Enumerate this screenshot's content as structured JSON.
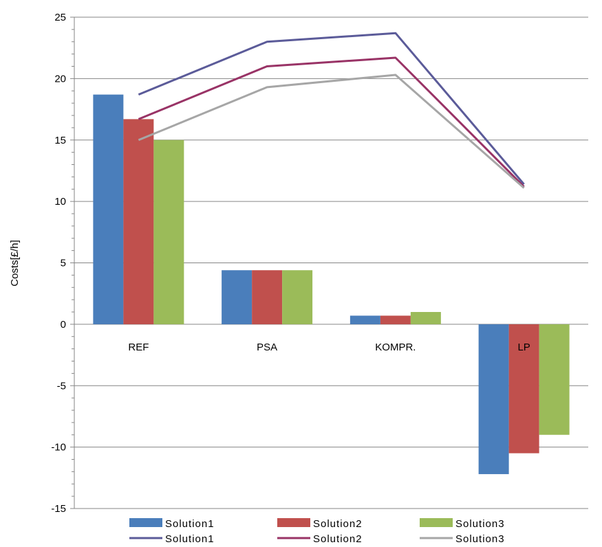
{
  "chart_data": {
    "type": "bar",
    "categories": [
      "REF",
      "PSA",
      "KOMPR.",
      "LP"
    ],
    "ylabel": "Costs[£/h]",
    "xlabel": "",
    "title": "",
    "ylim": [
      -15,
      25
    ],
    "yticks": [
      25,
      20,
      15,
      10,
      5,
      0,
      -5,
      -10,
      -15
    ],
    "grid": true,
    "legend_position": "bottom",
    "bar_series": [
      {
        "name": "Solution1",
        "color": "#4a7ebb",
        "values": [
          18.7,
          4.4,
          0.7,
          -12.2
        ]
      },
      {
        "name": "Solution2",
        "color": "#c0504d",
        "values": [
          16.7,
          4.4,
          0.7,
          -10.5
        ]
      },
      {
        "name": "Solution3",
        "color": "#9bbb59",
        "values": [
          15.0,
          4.4,
          1.0,
          -9.0
        ]
      }
    ],
    "line_series": [
      {
        "name": "Solution1",
        "color": "#5b5b99",
        "values": [
          18.7,
          23.0,
          23.7,
          11.4
        ]
      },
      {
        "name": "Solution2",
        "color": "#993366",
        "values": [
          16.7,
          21.0,
          21.7,
          11.2
        ]
      },
      {
        "name": "Solution3",
        "color": "#a6a6a6",
        "values": [
          15.0,
          19.3,
          20.3,
          11.1
        ]
      }
    ]
  }
}
